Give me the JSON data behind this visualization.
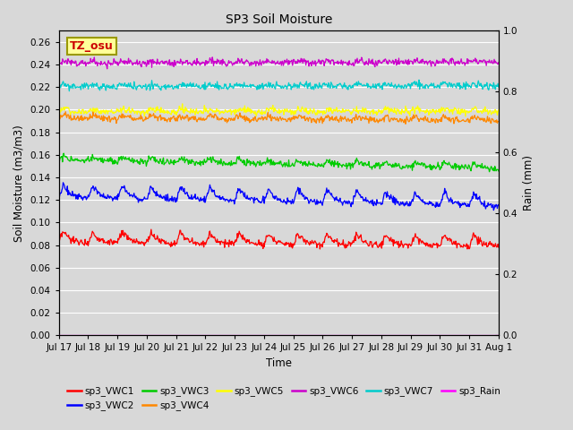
{
  "title": "SP3 Soil Moisture",
  "xlabel": "Time",
  "ylabel_left": "Soil Moisture (m3/m3)",
  "ylabel_right": "Rain (mm)",
  "ylim_left": [
    0.0,
    0.27
  ],
  "ylim_right": [
    0.0,
    1.0
  ],
  "yticks_left": [
    0.0,
    0.02,
    0.04,
    0.06,
    0.08,
    0.1,
    0.12,
    0.14,
    0.16,
    0.18,
    0.2,
    0.22,
    0.24,
    0.26
  ],
  "yticks_right": [
    0.0,
    0.2,
    0.4,
    0.6,
    0.8,
    1.0
  ],
  "x_tick_labels": [
    "Jul 17",
    "Jul 18",
    "Jul 19",
    "Jul 20",
    "Jul 21",
    "Jul 22",
    "Jul 23",
    "Jul 24",
    "Jul 25",
    "Jul 26",
    "Jul 27",
    "Jul 28",
    "Jul 29",
    "Jul 30",
    "Jul 31",
    "Aug 1"
  ],
  "background_color": "#d8d8d8",
  "axes_bg_color": "#d8d8d8",
  "grid_color": "#ffffff",
  "series_order": [
    "sp3_VWC1",
    "sp3_VWC2",
    "sp3_VWC3",
    "sp3_VWC4",
    "sp3_VWC5",
    "sp3_VWC6",
    "sp3_VWC7"
  ],
  "series": {
    "sp3_VWC1": {
      "color": "#ff0000",
      "base": 0.082,
      "amplitude": 0.01,
      "trend": -0.003
    },
    "sp3_VWC2": {
      "color": "#0000ff",
      "base": 0.122,
      "amplitude": 0.012,
      "trend": -0.008
    },
    "sp3_VWC3": {
      "color": "#00cc00",
      "base": 0.155,
      "amplitude": 0.004,
      "trend": -0.007
    },
    "sp3_VWC4": {
      "color": "#ff8800",
      "base": 0.192,
      "amplitude": 0.004,
      "trend": -0.002
    },
    "sp3_VWC5": {
      "color": "#ffff00",
      "base": 0.198,
      "amplitude": 0.003,
      "trend": 0.0
    },
    "sp3_VWC6": {
      "color": "#cc00cc",
      "base": 0.241,
      "amplitude": 0.002,
      "trend": 0.001
    },
    "sp3_VWC7": {
      "color": "#00cccc",
      "base": 0.22,
      "amplitude": 0.002,
      "trend": 0.001
    }
  },
  "rain_color": "#ff00ff",
  "legend_row1": [
    {
      "label": "sp3_VWC1",
      "color": "#ff0000"
    },
    {
      "label": "sp3_VWC2",
      "color": "#0000ff"
    },
    {
      "label": "sp3_VWC3",
      "color": "#00cc00"
    },
    {
      "label": "sp3_VWC4",
      "color": "#ff8800"
    },
    {
      "label": "sp3_VWC5",
      "color": "#ffff00"
    },
    {
      "label": "sp3_VWC6",
      "color": "#cc00cc"
    }
  ],
  "legend_row2": [
    {
      "label": "sp3_VWC7",
      "color": "#00cccc"
    },
    {
      "label": "sp3_Rain",
      "color": "#ff00ff"
    }
  ],
  "annotation_text": "TZ_osu",
  "annotation_color": "#cc0000",
  "annotation_bg": "#ffff99",
  "annotation_border": "#999900"
}
